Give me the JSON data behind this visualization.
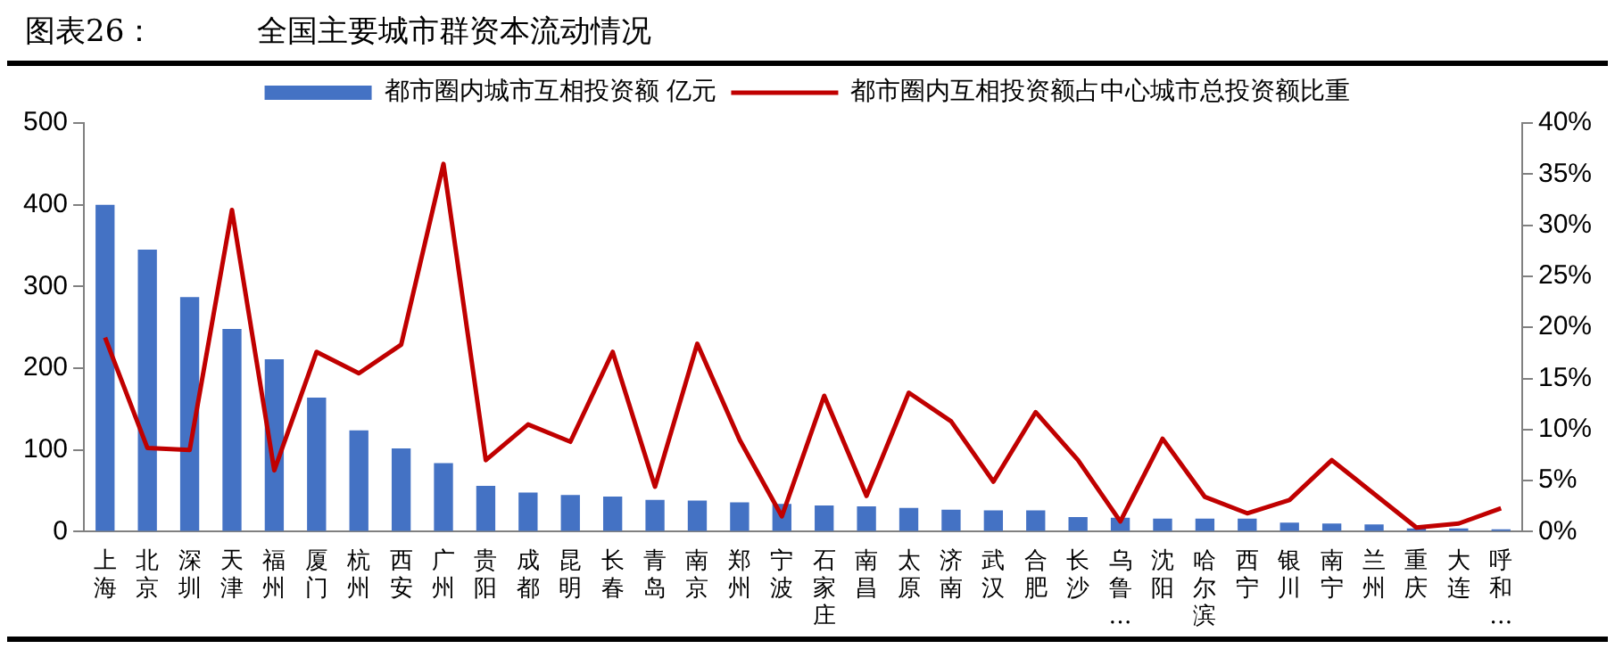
{
  "chart_data": {
    "type": "bar",
    "title": "图表26：",
    "subtitle": "全国主要城市群资本流动情况",
    "categories": [
      "上海",
      "北京",
      "深圳",
      "天津",
      "福州",
      "厦门",
      "杭州",
      "西安",
      "广州",
      "贵阳",
      "成都",
      "昆明",
      "长春",
      "青岛",
      "南京",
      "郑州",
      "宁波",
      "石家庄",
      "南昌",
      "太原",
      "济南",
      "武汉",
      "合肥",
      "长沙",
      "乌鲁…",
      "沈阳",
      "哈尔滨",
      "西宁",
      "银川",
      "南宁",
      "兰州",
      "重庆",
      "大连",
      "呼和…"
    ],
    "series": [
      {
        "name": "都市圈内城市互相投资额 亿元",
        "color": "#4472c4",
        "values": [
          400,
          345,
          287,
          248,
          211,
          164,
          124,
          102,
          84,
          56,
          48,
          45,
          43,
          39,
          38,
          36,
          34,
          32,
          31,
          29,
          27,
          26,
          26,
          18,
          17,
          16,
          16,
          16,
          11,
          10,
          9,
          4,
          4,
          3
        ]
      },
      {
        "name": "都市圈内互相投资额占中心城市总投资额比重",
        "type": "line",
        "axis": "y2",
        "color": "#c00000",
        "values": [
          19,
          8.2,
          8,
          31.5,
          6,
          17.6,
          15.5,
          18.3,
          36,
          7,
          10.5,
          8.8,
          17.6,
          4.4,
          18.4,
          9,
          1.5,
          13.3,
          3.5,
          13.6,
          10.8,
          4.9,
          11.7,
          7,
          1,
          9.1,
          3.4,
          1.8,
          3.1,
          7,
          3.7,
          0.4,
          0.8,
          2.3
        ]
      }
    ],
    "ylim": [
      0,
      500
    ],
    "yticks": [
      0,
      100,
      200,
      300,
      400,
      500
    ],
    "y2lim": [
      0,
      40
    ],
    "y2ticks": [
      {
        "value": 0,
        "label": "0%"
      },
      {
        "value": 5,
        "label": "5%"
      },
      {
        "value": 10,
        "label": "10%"
      },
      {
        "value": 15,
        "label": "15%"
      },
      {
        "value": 20,
        "label": "20%"
      },
      {
        "value": 25,
        "label": "25%"
      },
      {
        "value": 30,
        "label": "30%"
      },
      {
        "value": 35,
        "label": "35%"
      },
      {
        "value": 40,
        "label": "40%"
      }
    ],
    "legend": "top"
  }
}
